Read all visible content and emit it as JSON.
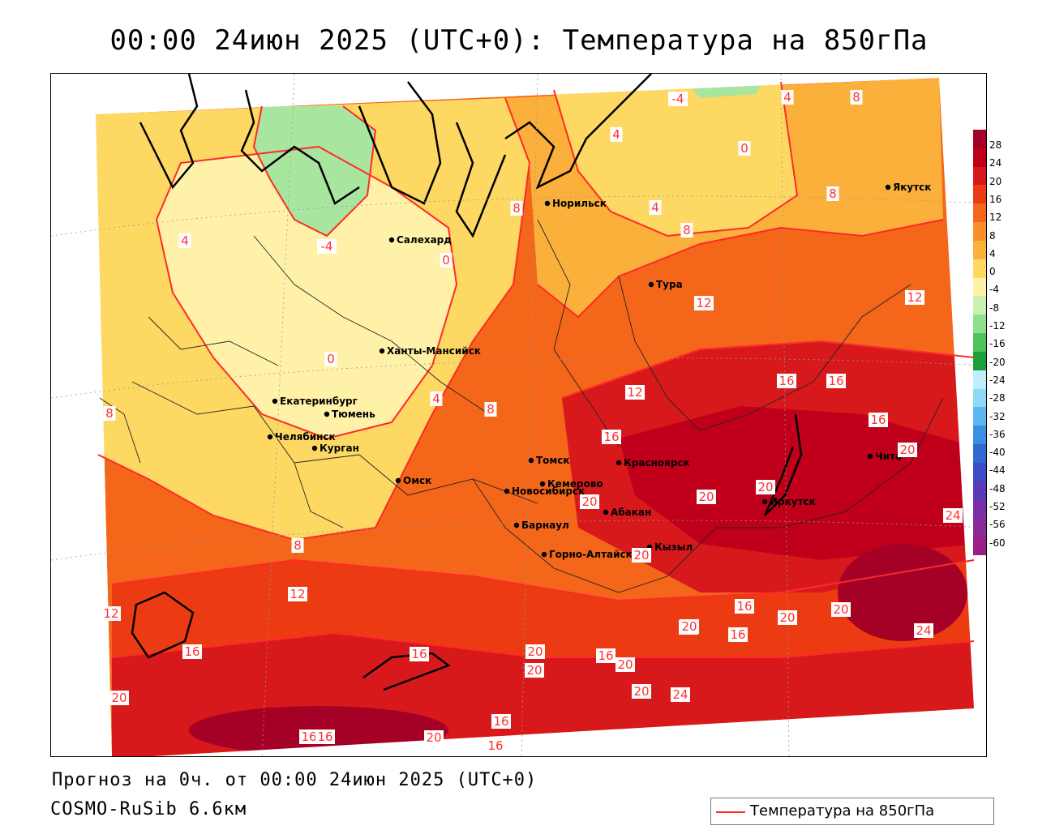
{
  "title": "00:00 24июн 2025 (UTC+0): Температура на 850гПа",
  "footer": {
    "forecast": "Прогноз на 0ч. от 00:00 24июн 2025 (UTC+0)",
    "model": "COSMO-RuSib 6.6км"
  },
  "legend": {
    "label": "Температура на 850гПа",
    "line_color": "#ff2a2a"
  },
  "colorbar": {
    "ticks": [
      "28",
      "24",
      "20",
      "16",
      "12",
      "8",
      "4",
      "0",
      "-4",
      "-8",
      "-12",
      "-16",
      "-20",
      "-24",
      "-28",
      "-32",
      "-36",
      "-40",
      "-44",
      "-48",
      "-52",
      "-56",
      "-60"
    ],
    "colors": [
      "#a50026",
      "#c0001a",
      "#d7191c",
      "#ec3a12",
      "#f4661a",
      "#f98f2a",
      "#fbb03c",
      "#fdd863",
      "#fff2a8",
      "#c8f0b0",
      "#8fe08a",
      "#4fc45a",
      "#1e9e3a",
      "#bfeefc",
      "#8fd8f8",
      "#5ab8f0",
      "#3a90e0",
      "#2e6ad0",
      "#3c4bc8",
      "#5a3ab8",
      "#7a2ea8",
      "#8a2a9a",
      "#9a1f8a"
    ]
  },
  "cities": [
    {
      "name": "Якутск"
    },
    {
      "name": "Норильск"
    },
    {
      "name": "Салехард"
    },
    {
      "name": "Тура"
    },
    {
      "name": "Ханты-Мансийск"
    },
    {
      "name": "Екатеринбург"
    },
    {
      "name": "Тюмень"
    },
    {
      "name": "Челябинск"
    },
    {
      "name": "Курган"
    },
    {
      "name": "Омск"
    },
    {
      "name": "Новосибирск"
    },
    {
      "name": "Томск"
    },
    {
      "name": "Красноярск"
    },
    {
      "name": "Кемерово"
    },
    {
      "name": "Абакан"
    },
    {
      "name": "Иркутск"
    },
    {
      "name": "Чита"
    },
    {
      "name": "Барнаул"
    },
    {
      "name": "Горно-Алтайск"
    },
    {
      "name": "Кызыл"
    }
  ],
  "isotherm_labels": [
    "-4",
    "4",
    "8",
    "4",
    "0",
    "8",
    "8",
    "4",
    "8",
    "-4",
    "0",
    "4",
    "12",
    "12",
    "0",
    "4",
    "8",
    "8",
    "16",
    "16",
    "16",
    "12",
    "16",
    "20",
    "20",
    "20",
    "20",
    "24",
    "8",
    "12",
    "12",
    "16",
    "16",
    "20",
    "20",
    "20",
    "16",
    "20",
    "16",
    "20",
    "16",
    "20",
    "20",
    "24",
    "20",
    "24",
    "16",
    "20",
    "16",
    "20",
    "16",
    "16",
    "20"
  ],
  "colors": {
    "isotherm": "#ff2a2a",
    "border": "#000000"
  }
}
